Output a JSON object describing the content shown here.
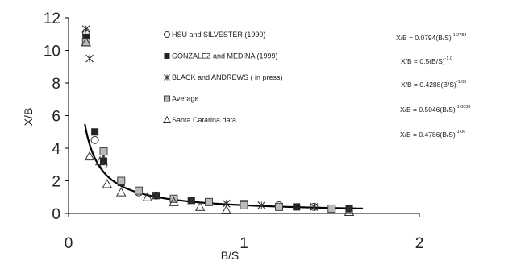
{
  "chart_data": {
    "type": "scatter",
    "xlabel": "B/S",
    "ylabel": "X/B",
    "xlim": [
      0,
      2
    ],
    "ylim": [
      0,
      12
    ],
    "x_ticks": [
      "0",
      "1",
      "2"
    ],
    "y_ticks": [
      "0",
      "2",
      "4",
      "6",
      "8",
      "10",
      "12"
    ],
    "grid": false,
    "legend_position": "top-center",
    "series": [
      {
        "name": "HSU and SILVESTER (1990)",
        "marker": "circle-open",
        "equation": "X/B = 0.0794(B/S)",
        "exponent": "-1.2783",
        "x": [
          0.1,
          0.15,
          0.2,
          0.3,
          0.4,
          0.5,
          0.6,
          0.8,
          1.0,
          1.2,
          1.4,
          1.6
        ],
        "y": [
          11.1,
          4.5,
          3.0,
          2.0,
          1.3,
          1.1,
          0.9,
          0.7,
          0.5,
          0.5,
          0.4,
          0.3
        ]
      },
      {
        "name": "GONZALEZ and MEDINA (1999)",
        "marker": "square-filled",
        "equation": "X/B = 0.5(B/S)",
        "exponent": "-1.0",
        "x": [
          0.1,
          0.15,
          0.2,
          0.3,
          0.4,
          0.5,
          0.7,
          1.0,
          1.3,
          1.6
        ],
        "y": [
          10.8,
          5.0,
          3.2,
          1.9,
          1.4,
          1.1,
          0.8,
          0.6,
          0.4,
          0.3
        ]
      },
      {
        "name": "BLACK and ANDREWS ( in press)",
        "marker": "x",
        "equation": "X/B = 0.4288(B/S)",
        "exponent": "-1.05",
        "x": [
          0.1,
          0.12,
          0.2,
          0.3,
          0.5,
          0.7,
          0.9,
          1.1,
          1.4,
          1.6
        ],
        "y": [
          11.3,
          9.5,
          3.5,
          2.0,
          1.1,
          0.8,
          0.6,
          0.5,
          0.4,
          0.3
        ]
      },
      {
        "name": "Average",
        "marker": "square-dotted",
        "equation": "X/B = 0.5046(B/S)",
        "exponent": "-1.0038",
        "x": [
          0.1,
          0.2,
          0.3,
          0.4,
          0.6,
          0.8,
          1.0,
          1.2,
          1.5
        ],
        "y": [
          10.5,
          3.8,
          2.0,
          1.4,
          0.9,
          0.7,
          0.5,
          0.4,
          0.3
        ]
      },
      {
        "name": "Santa Catarina data",
        "marker": "triangle-open",
        "equation": "X/B = 0.4786(B/S)",
        "exponent": "-1.06",
        "x": [
          0.1,
          0.12,
          0.18,
          0.22,
          0.3,
          0.45,
          0.6,
          0.75,
          0.9,
          1.6
        ],
        "y": [
          10.5,
          3.5,
          3.2,
          1.8,
          1.3,
          1.0,
          0.7,
          0.4,
          0.2,
          0.1
        ]
      }
    ],
    "fit_line": {
      "a": 0.5046,
      "b": -1.0038,
      "color": "#000000"
    }
  }
}
